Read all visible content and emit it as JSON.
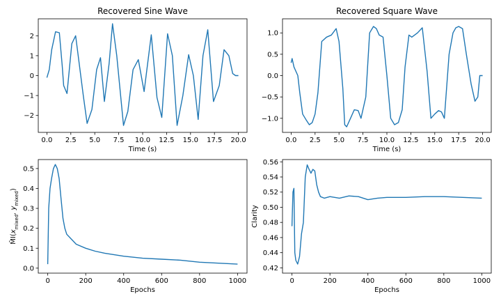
{
  "figure": {
    "line_color": "#1f77b4",
    "background": "#ffffff"
  },
  "chart_data": [
    {
      "type": "line",
      "title": "Recovered Sine Wave",
      "xlabel": "Time (s)",
      "ylabel": "",
      "xlim": [
        -0.9,
        20.9
      ],
      "ylim": [
        -2.85,
        2.85
      ],
      "xticks": [
        0,
        2.5,
        5,
        7.5,
        10,
        12.5,
        15,
        17.5,
        20
      ],
      "xtick_labels": [
        "0.0",
        "2.5",
        "5.0",
        "7.5",
        "10.0",
        "12.5",
        "15.0",
        "17.5",
        "20.0"
      ],
      "yticks": [
        -2,
        -1,
        0,
        1,
        2
      ],
      "ytick_labels": [
        "−2",
        "−1",
        "0",
        "1",
        "2"
      ],
      "series": [
        {
          "x": [
            0,
            0.25,
            0.5,
            0.9,
            1.3,
            1.6,
            1.75,
            2.1,
            2.6,
            3.0,
            3.4,
            3.8,
            4.2,
            4.7,
            5.2,
            5.6,
            6.0,
            6.5,
            6.85,
            7.3,
            8.0,
            8.45,
            9.0,
            9.55,
            10.15,
            10.9,
            11.5,
            12.0,
            12.6,
            13.1,
            13.6,
            14.2,
            14.8,
            15.3,
            15.8,
            16.3,
            16.8,
            17.4,
            18.0,
            18.5,
            19.0,
            19.4,
            19.7,
            20.0
          ],
          "y": [
            -0.1,
            0.3,
            1.3,
            2.2,
            2.15,
            0.5,
            -0.5,
            -0.9,
            1.6,
            2.0,
            0.5,
            -1.0,
            -2.4,
            -1.7,
            0.3,
            0.9,
            -1.3,
            0.6,
            2.6,
            1.0,
            -2.5,
            -1.8,
            0.3,
            0.8,
            -0.8,
            2.05,
            -1.1,
            -2.1,
            2.1,
            1.0,
            -2.5,
            -1.0,
            1.05,
            0.0,
            -2.2,
            1.0,
            2.3,
            -1.3,
            -0.5,
            1.3,
            1.0,
            0.1,
            0.0,
            0.0
          ]
        }
      ]
    },
    {
      "type": "line",
      "title": "Recovered Square Wave",
      "xlabel": "Time (s)",
      "ylabel": "",
      "xlim": [
        -0.9,
        20.9
      ],
      "ylim": [
        -1.33,
        1.33
      ],
      "xticks": [
        0,
        2.5,
        5,
        7.5,
        10,
        12.5,
        15,
        17.5,
        20
      ],
      "xtick_labels": [
        "0.0",
        "2.5",
        "5.0",
        "7.5",
        "10.0",
        "12.5",
        "15.0",
        "17.5",
        "20.0"
      ],
      "yticks": [
        -1.0,
        -0.5,
        0.0,
        0.5,
        1.0
      ],
      "ytick_labels": [
        "−1.0",
        "−0.5",
        "0.0",
        "0.5",
        "1.0"
      ],
      "series": [
        {
          "x": [
            0,
            0.1,
            0.3,
            0.7,
            0.9,
            1.2,
            1.6,
            1.9,
            2.2,
            2.5,
            2.8,
            3.2,
            3.7,
            4.2,
            4.7,
            5.0,
            5.4,
            5.6,
            5.8,
            6.2,
            6.6,
            7.0,
            7.3,
            7.8,
            8.2,
            8.6,
            8.9,
            9.2,
            9.6,
            10.0,
            10.4,
            10.8,
            11.2,
            11.6,
            11.9,
            12.3,
            12.6,
            13.2,
            13.7,
            14.2,
            14.6,
            15.0,
            15.4,
            15.7,
            16.0,
            16.5,
            16.9,
            17.2,
            17.5,
            17.9,
            18.3,
            18.8,
            19.2,
            19.5,
            19.7,
            20.0
          ],
          "y": [
            0.3,
            0.4,
            0.2,
            0.0,
            -0.4,
            -0.9,
            -1.05,
            -1.15,
            -1.1,
            -0.9,
            -0.4,
            0.8,
            0.9,
            0.95,
            1.1,
            0.8,
            -0.3,
            -1.15,
            -1.2,
            -1.0,
            -0.8,
            -0.82,
            -1.0,
            -0.5,
            1.0,
            1.15,
            1.1,
            0.95,
            0.9,
            0.0,
            -1.0,
            -1.15,
            -1.1,
            -0.8,
            0.2,
            0.95,
            0.9,
            1.0,
            1.12,
            0.1,
            -1.0,
            -0.9,
            -0.82,
            -0.85,
            -1.0,
            0.5,
            1.0,
            1.12,
            1.15,
            1.1,
            0.5,
            -0.2,
            -0.6,
            -0.5,
            0.0,
            0.0
          ]
        }
      ]
    },
    {
      "type": "line",
      "title": "",
      "xlabel": "Epochs",
      "ylabel": "M̂I(x_mixed, y_mixed)",
      "xlim": [
        -50,
        1050
      ],
      "ylim": [
        -0.025,
        0.545
      ],
      "xticks": [
        0,
        200,
        400,
        600,
        800,
        1000
      ],
      "xtick_labels": [
        "0",
        "200",
        "400",
        "600",
        "800",
        "1000"
      ],
      "yticks": [
        0.0,
        0.1,
        0.2,
        0.3,
        0.4,
        0.5
      ],
      "ytick_labels": [
        "0.0",
        "0.1",
        "0.2",
        "0.3",
        "0.4",
        "0.5"
      ],
      "series": [
        {
          "x": [
            0,
            5,
            12,
            20,
            30,
            40,
            50,
            60,
            70,
            80,
            90,
            100,
            120,
            150,
            200,
            250,
            300,
            400,
            500,
            600,
            700,
            800,
            900,
            1000
          ],
          "y": [
            0.02,
            0.3,
            0.4,
            0.45,
            0.5,
            0.52,
            0.5,
            0.45,
            0.35,
            0.25,
            0.2,
            0.17,
            0.15,
            0.12,
            0.1,
            0.085,
            0.075,
            0.06,
            0.05,
            0.045,
            0.04,
            0.03,
            0.025,
            0.02
          ]
        }
      ]
    },
    {
      "type": "line",
      "title": "",
      "xlabel": "Epochs",
      "ylabel": "Clarity",
      "xlim": [
        -50,
        1050
      ],
      "ylim": [
        0.413,
        0.563
      ],
      "xticks": [
        0,
        200,
        400,
        600,
        800,
        1000
      ],
      "xtick_labels": [
        "0",
        "200",
        "400",
        "600",
        "800",
        "1000"
      ],
      "yticks": [
        0.42,
        0.44,
        0.46,
        0.48,
        0.5,
        0.52,
        0.54,
        0.56
      ],
      "ytick_labels": [
        "0.42",
        "0.44",
        "0.46",
        "0.48",
        "0.50",
        "0.52",
        "0.54",
        "0.56"
      ],
      "series": [
        {
          "x": [
            0,
            5,
            10,
            15,
            20,
            30,
            40,
            50,
            60,
            70,
            80,
            90,
            100,
            110,
            120,
            130,
            140,
            150,
            170,
            200,
            250,
            300,
            350,
            400,
            450,
            500,
            600,
            700,
            800,
            900,
            1000
          ],
          "y": [
            0.475,
            0.52,
            0.525,
            0.44,
            0.43,
            0.425,
            0.435,
            0.465,
            0.48,
            0.54,
            0.556,
            0.55,
            0.545,
            0.55,
            0.548,
            0.53,
            0.52,
            0.514,
            0.512,
            0.514,
            0.512,
            0.515,
            0.514,
            0.51,
            0.512,
            0.513,
            0.513,
            0.514,
            0.514,
            0.513,
            0.512
          ]
        }
      ]
    }
  ]
}
